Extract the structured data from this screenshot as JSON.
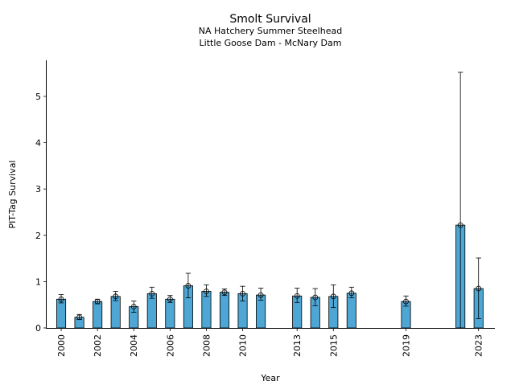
{
  "chart_data": {
    "type": "bar",
    "title": "Smolt Survival",
    "subtitle": [
      "NA Hatchery Summer Steelhead",
      "Little Goose Dam - McNary Dam"
    ],
    "xlabel": "Year",
    "ylabel": "PIT-Tag Survival",
    "xlim": [
      1999.2,
      2023.9
    ],
    "ylim": [
      0,
      5.78
    ],
    "yticks": [
      0,
      1,
      2,
      3,
      4,
      5
    ],
    "xticks": [
      2000,
      2002,
      2004,
      2006,
      2008,
      2010,
      2013,
      2015,
      2019,
      2023
    ],
    "grid": false,
    "bar_color": "#4da6d4",
    "points": [
      {
        "x": 2000,
        "y": 0.62,
        "lo": 0.54,
        "hi": 0.72
      },
      {
        "x": 2001,
        "y": 0.23,
        "lo": 0.18,
        "hi": 0.29
      },
      {
        "x": 2002,
        "y": 0.57,
        "lo": 0.52,
        "hi": 0.62
      },
      {
        "x": 2003,
        "y": 0.68,
        "lo": 0.59,
        "hi": 0.79
      },
      {
        "x": 2004,
        "y": 0.46,
        "lo": 0.34,
        "hi": 0.58
      },
      {
        "x": 2005,
        "y": 0.74,
        "lo": 0.64,
        "hi": 0.88
      },
      {
        "x": 2006,
        "y": 0.62,
        "lo": 0.55,
        "hi": 0.7
      },
      {
        "x": 2007,
        "y": 0.91,
        "lo": 0.65,
        "hi": 1.18
      },
      {
        "x": 2008,
        "y": 0.79,
        "lo": 0.68,
        "hi": 0.93
      },
      {
        "x": 2009,
        "y": 0.77,
        "lo": 0.7,
        "hi": 0.84
      },
      {
        "x": 2010,
        "y": 0.74,
        "lo": 0.58,
        "hi": 0.9
      },
      {
        "x": 2011,
        "y": 0.71,
        "lo": 0.6,
        "hi": 0.86
      },
      {
        "x": 2013,
        "y": 0.69,
        "lo": 0.55,
        "hi": 0.86
      },
      {
        "x": 2014,
        "y": 0.66,
        "lo": 0.48,
        "hi": 0.85
      },
      {
        "x": 2015,
        "y": 0.68,
        "lo": 0.44,
        "hi": 0.93
      },
      {
        "x": 2016,
        "y": 0.75,
        "lo": 0.65,
        "hi": 0.88
      },
      {
        "x": 2019,
        "y": 0.57,
        "lo": 0.47,
        "hi": 0.69
      },
      {
        "x": 2022,
        "y": 2.22,
        "lo": 0.0,
        "hi": 5.52
      },
      {
        "x": 2023,
        "y": 0.85,
        "lo": 0.2,
        "hi": 1.51
      }
    ]
  }
}
